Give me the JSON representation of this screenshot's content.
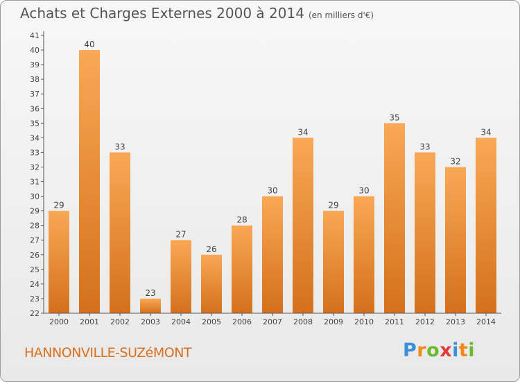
{
  "title": {
    "main": "Achats et Charges Externes 2000 à 2014",
    "unit": "(en milliers d'€)"
  },
  "commune": "HANNONVILLE-SUZéMONT",
  "logo": {
    "letters": [
      "P",
      "r",
      "o",
      "x",
      "i",
      "t",
      "i"
    ],
    "colors": [
      "#3a8fd6",
      "#f08a1c",
      "#6ab92f",
      "#e23a3a",
      "#3a8fd6",
      "#f08a1c",
      "#6ab92f"
    ]
  },
  "colors": {
    "bar_top": "#f9a855",
    "bar_bottom": "#d4701c",
    "axis": "#555555",
    "tick_text": "#444444"
  },
  "chart_data": {
    "type": "bar",
    "categories": [
      "2000",
      "2001",
      "2002",
      "2003",
      "2004",
      "2005",
      "2006",
      "2007",
      "2008",
      "2009",
      "2010",
      "2011",
      "2012",
      "2013",
      "2014"
    ],
    "values": [
      29,
      40,
      33,
      23,
      27,
      26,
      28,
      30,
      34,
      29,
      30,
      35,
      33,
      32,
      34
    ],
    "ylim": [
      22,
      41
    ],
    "yticks": [
      22,
      23,
      24,
      25,
      26,
      27,
      28,
      29,
      30,
      31,
      32,
      33,
      34,
      35,
      36,
      37,
      38,
      39,
      40,
      41
    ],
    "grid": false,
    "legend": false
  }
}
